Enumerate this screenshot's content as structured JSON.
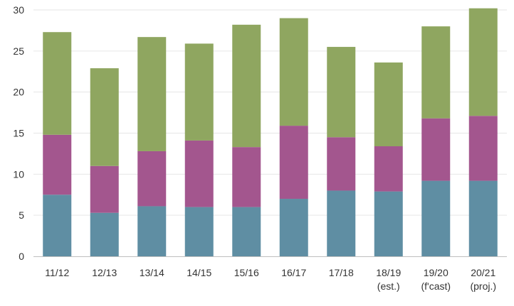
{
  "chart_data": {
    "type": "bar",
    "stacked": true,
    "title": "",
    "xlabel": "",
    "ylabel": "",
    "ylim": [
      0,
      30
    ],
    "yticks": [
      0,
      5,
      10,
      15,
      20,
      25,
      30
    ],
    "grid": true,
    "legend": "none",
    "categories": [
      [
        "11/12"
      ],
      [
        "12/13"
      ],
      [
        "13/14"
      ],
      [
        "14/15"
      ],
      [
        "15/16"
      ],
      [
        "16/17"
      ],
      [
        "17/18"
      ],
      [
        "18/19",
        "(est.)"
      ],
      [
        "19/20",
        "(f'cast)"
      ],
      [
        "20/21",
        "(proj.)"
      ]
    ],
    "series": [
      {
        "color": "#5f8ea3",
        "values": [
          7.5,
          5.3,
          6.1,
          6.0,
          6.0,
          7.0,
          8.0,
          7.9,
          9.2,
          9.2
        ]
      },
      {
        "color": "#a3568e",
        "values": [
          7.3,
          5.7,
          6.7,
          8.1,
          7.3,
          8.9,
          6.5,
          5.5,
          7.6,
          7.9
        ]
      },
      {
        "color": "#8fa660",
        "values": [
          12.5,
          11.9,
          13.9,
          11.8,
          14.9,
          13.1,
          11.0,
          10.2,
          11.2,
          13.1
        ]
      }
    ]
  }
}
